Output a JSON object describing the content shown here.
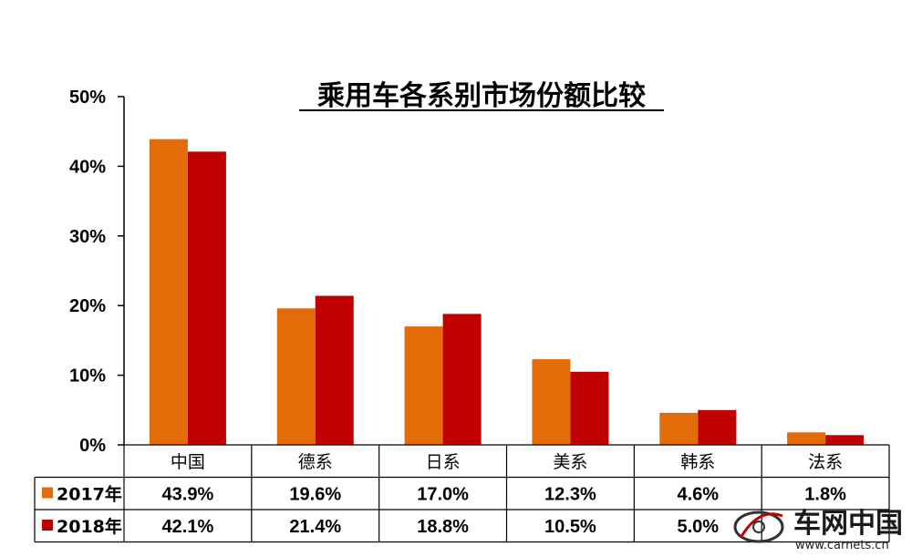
{
  "chart_data": {
    "type": "bar",
    "title": "乘用车各系别市场份额比较",
    "categories": [
      "中国",
      "德系",
      "日系",
      "美系",
      "韩系",
      "法系"
    ],
    "series": [
      {
        "name": "2017年",
        "color": "#E36C09",
        "values": [
          43.9,
          19.6,
          17.0,
          12.3,
          4.6,
          1.8
        ],
        "labels": [
          "43.9%",
          "19.6%",
          "17.0%",
          "12.3%",
          "4.6%",
          "1.8%"
        ]
      },
      {
        "name": "2018年",
        "color": "#C00000",
        "values": [
          42.1,
          21.4,
          18.8,
          10.5,
          5.0,
          1.4
        ],
        "labels": [
          "42.1%",
          "21.4%",
          "18.8%",
          "10.5%",
          "5.0%",
          ""
        ]
      }
    ],
    "y_ticks": [
      "0%",
      "10%",
      "20%",
      "30%",
      "40%",
      "50%"
    ],
    "ylim": [
      0,
      50
    ],
    "grid": false,
    "legend": "data-table"
  },
  "watermark": {
    "name": "车网中国",
    "url": "www.carnets.cn"
  }
}
